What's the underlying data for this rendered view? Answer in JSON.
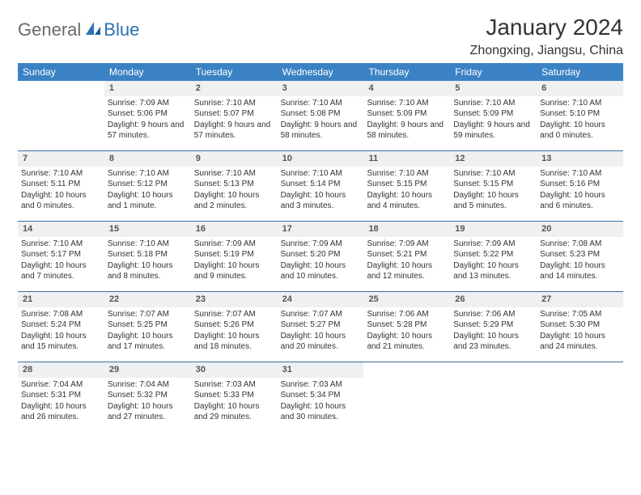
{
  "logo": {
    "part1": "General",
    "part2": "Blue"
  },
  "title": "January 2024",
  "location": "Zhongxing, Jiangsu, China",
  "colors": {
    "header_blue": "#3b82c4",
    "rule_blue": "#3b6fa0",
    "daynum_bg": "#eef0f2",
    "logo_gray": "#6a6a6a",
    "logo_blue": "#2a72b5"
  },
  "dow": [
    "Sunday",
    "Monday",
    "Tuesday",
    "Wednesday",
    "Thursday",
    "Friday",
    "Saturday"
  ],
  "weeks": [
    [
      {
        "n": "",
        "sunrise": "",
        "sunset": "",
        "daylight": ""
      },
      {
        "n": "1",
        "sunrise": "Sunrise: 7:09 AM",
        "sunset": "Sunset: 5:06 PM",
        "daylight": "Daylight: 9 hours and 57 minutes."
      },
      {
        "n": "2",
        "sunrise": "Sunrise: 7:10 AM",
        "sunset": "Sunset: 5:07 PM",
        "daylight": "Daylight: 9 hours and 57 minutes."
      },
      {
        "n": "3",
        "sunrise": "Sunrise: 7:10 AM",
        "sunset": "Sunset: 5:08 PM",
        "daylight": "Daylight: 9 hours and 58 minutes."
      },
      {
        "n": "4",
        "sunrise": "Sunrise: 7:10 AM",
        "sunset": "Sunset: 5:09 PM",
        "daylight": "Daylight: 9 hours and 58 minutes."
      },
      {
        "n": "5",
        "sunrise": "Sunrise: 7:10 AM",
        "sunset": "Sunset: 5:09 PM",
        "daylight": "Daylight: 9 hours and 59 minutes."
      },
      {
        "n": "6",
        "sunrise": "Sunrise: 7:10 AM",
        "sunset": "Sunset: 5:10 PM",
        "daylight": "Daylight: 10 hours and 0 minutes."
      }
    ],
    [
      {
        "n": "7",
        "sunrise": "Sunrise: 7:10 AM",
        "sunset": "Sunset: 5:11 PM",
        "daylight": "Daylight: 10 hours and 0 minutes."
      },
      {
        "n": "8",
        "sunrise": "Sunrise: 7:10 AM",
        "sunset": "Sunset: 5:12 PM",
        "daylight": "Daylight: 10 hours and 1 minute."
      },
      {
        "n": "9",
        "sunrise": "Sunrise: 7:10 AM",
        "sunset": "Sunset: 5:13 PM",
        "daylight": "Daylight: 10 hours and 2 minutes."
      },
      {
        "n": "10",
        "sunrise": "Sunrise: 7:10 AM",
        "sunset": "Sunset: 5:14 PM",
        "daylight": "Daylight: 10 hours and 3 minutes."
      },
      {
        "n": "11",
        "sunrise": "Sunrise: 7:10 AM",
        "sunset": "Sunset: 5:15 PM",
        "daylight": "Daylight: 10 hours and 4 minutes."
      },
      {
        "n": "12",
        "sunrise": "Sunrise: 7:10 AM",
        "sunset": "Sunset: 5:15 PM",
        "daylight": "Daylight: 10 hours and 5 minutes."
      },
      {
        "n": "13",
        "sunrise": "Sunrise: 7:10 AM",
        "sunset": "Sunset: 5:16 PM",
        "daylight": "Daylight: 10 hours and 6 minutes."
      }
    ],
    [
      {
        "n": "14",
        "sunrise": "Sunrise: 7:10 AM",
        "sunset": "Sunset: 5:17 PM",
        "daylight": "Daylight: 10 hours and 7 minutes."
      },
      {
        "n": "15",
        "sunrise": "Sunrise: 7:10 AM",
        "sunset": "Sunset: 5:18 PM",
        "daylight": "Daylight: 10 hours and 8 minutes."
      },
      {
        "n": "16",
        "sunrise": "Sunrise: 7:09 AM",
        "sunset": "Sunset: 5:19 PM",
        "daylight": "Daylight: 10 hours and 9 minutes."
      },
      {
        "n": "17",
        "sunrise": "Sunrise: 7:09 AM",
        "sunset": "Sunset: 5:20 PM",
        "daylight": "Daylight: 10 hours and 10 minutes."
      },
      {
        "n": "18",
        "sunrise": "Sunrise: 7:09 AM",
        "sunset": "Sunset: 5:21 PM",
        "daylight": "Daylight: 10 hours and 12 minutes."
      },
      {
        "n": "19",
        "sunrise": "Sunrise: 7:09 AM",
        "sunset": "Sunset: 5:22 PM",
        "daylight": "Daylight: 10 hours and 13 minutes."
      },
      {
        "n": "20",
        "sunrise": "Sunrise: 7:08 AM",
        "sunset": "Sunset: 5:23 PM",
        "daylight": "Daylight: 10 hours and 14 minutes."
      }
    ],
    [
      {
        "n": "21",
        "sunrise": "Sunrise: 7:08 AM",
        "sunset": "Sunset: 5:24 PM",
        "daylight": "Daylight: 10 hours and 15 minutes."
      },
      {
        "n": "22",
        "sunrise": "Sunrise: 7:07 AM",
        "sunset": "Sunset: 5:25 PM",
        "daylight": "Daylight: 10 hours and 17 minutes."
      },
      {
        "n": "23",
        "sunrise": "Sunrise: 7:07 AM",
        "sunset": "Sunset: 5:26 PM",
        "daylight": "Daylight: 10 hours and 18 minutes."
      },
      {
        "n": "24",
        "sunrise": "Sunrise: 7:07 AM",
        "sunset": "Sunset: 5:27 PM",
        "daylight": "Daylight: 10 hours and 20 minutes."
      },
      {
        "n": "25",
        "sunrise": "Sunrise: 7:06 AM",
        "sunset": "Sunset: 5:28 PM",
        "daylight": "Daylight: 10 hours and 21 minutes."
      },
      {
        "n": "26",
        "sunrise": "Sunrise: 7:06 AM",
        "sunset": "Sunset: 5:29 PM",
        "daylight": "Daylight: 10 hours and 23 minutes."
      },
      {
        "n": "27",
        "sunrise": "Sunrise: 7:05 AM",
        "sunset": "Sunset: 5:30 PM",
        "daylight": "Daylight: 10 hours and 24 minutes."
      }
    ],
    [
      {
        "n": "28",
        "sunrise": "Sunrise: 7:04 AM",
        "sunset": "Sunset: 5:31 PM",
        "daylight": "Daylight: 10 hours and 26 minutes."
      },
      {
        "n": "29",
        "sunrise": "Sunrise: 7:04 AM",
        "sunset": "Sunset: 5:32 PM",
        "daylight": "Daylight: 10 hours and 27 minutes."
      },
      {
        "n": "30",
        "sunrise": "Sunrise: 7:03 AM",
        "sunset": "Sunset: 5:33 PM",
        "daylight": "Daylight: 10 hours and 29 minutes."
      },
      {
        "n": "31",
        "sunrise": "Sunrise: 7:03 AM",
        "sunset": "Sunset: 5:34 PM",
        "daylight": "Daylight: 10 hours and 30 minutes."
      },
      {
        "n": "",
        "sunrise": "",
        "sunset": "",
        "daylight": ""
      },
      {
        "n": "",
        "sunrise": "",
        "sunset": "",
        "daylight": ""
      },
      {
        "n": "",
        "sunrise": "",
        "sunset": "",
        "daylight": ""
      }
    ]
  ]
}
